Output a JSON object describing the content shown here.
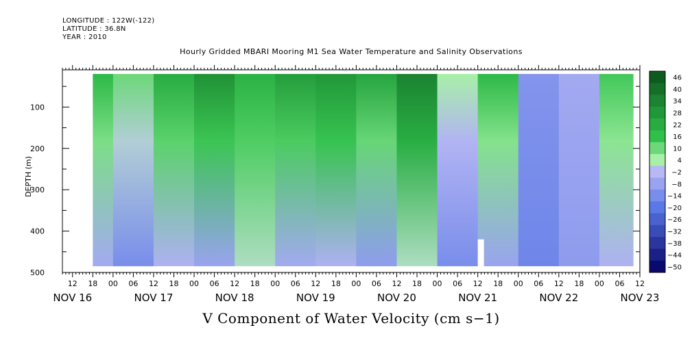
{
  "header": {
    "longitude": "LONGITUDE : 122W(-122)",
    "latitude": "LATITUDE : 36.8N",
    "year": "YEAR : 2010"
  },
  "title": "Hourly Gridded MBARI Mooring M1 Sea Water Temperature and Salinity Observations",
  "bottom_title": "V Component of Water Velocity (cm s−1)",
  "chart_data": {
    "type": "heatmap",
    "title": "Hourly Gridded MBARI Mooring M1 Sea Water Temperature and Salinity Observations",
    "xlabel": "",
    "ylabel": "DEPTH (m)",
    "colorbar_label": "V Component of Water Velocity (cm s−1)",
    "y_inverted": true,
    "ylim": [
      500,
      10
    ],
    "y_ticks": [
      100,
      200,
      300,
      400,
      500
    ],
    "x_range_hours": [
      "NOV 16 09:00",
      "NOV 23 12:00"
    ],
    "data_extent": {
      "start": "NOV 16 18:00",
      "end": "NOV 23 10:00",
      "depth_min": 20,
      "depth_max": 485
    },
    "x_hour_ticks": [
      "12",
      "18",
      "00",
      "06",
      "12",
      "18",
      "00",
      "06",
      "12",
      "18",
      "00",
      "06",
      "12",
      "18",
      "00",
      "06",
      "12",
      "18",
      "00",
      "06",
      "12",
      "18",
      "00",
      "06",
      "12",
      "18",
      "00",
      "06",
      "12",
      "18",
      "00",
      "06"
    ],
    "x_day_labels": [
      "NOV 16",
      "NOV 17",
      "NOV 18",
      "NOV 19",
      "NOV 20",
      "NOV 21",
      "NOV 22",
      "NOV 23"
    ],
    "colorbar_levels": [
      "46",
      "40",
      "34",
      "28",
      "22",
      "16",
      "10",
      "4",
      "−2",
      "−8",
      "−14",
      "−20",
      "−26",
      "−32",
      "−38",
      "−44",
      "−50"
    ],
    "colorbar_range": [
      -50,
      50
    ],
    "colors": {
      "strong_positive": "#0a4d1a",
      "positive": "#2fc04a",
      "weak_positive": "#a8f0a8",
      "weak_negative": "#b8b8f4",
      "negative": "#5a78e6",
      "strong_negative": "#0a0a6e"
    },
    "bands": [
      {
        "start": "NOV 16 18:00",
        "surface_value": 18,
        "deep_value": -6
      },
      {
        "start": "NOV 17 00:00",
        "surface_value": 10,
        "deep_value": -14
      },
      {
        "start": "NOV 17 12:00",
        "surface_value": 22,
        "deep_value": -4
      },
      {
        "start": "NOV 18 00:00",
        "surface_value": 30,
        "deep_value": -8
      },
      {
        "start": "NOV 18 12:00",
        "surface_value": 20,
        "deep_value": 2
      },
      {
        "start": "NOV 19 00:00",
        "surface_value": 26,
        "deep_value": -6
      },
      {
        "start": "NOV 19 12:00",
        "surface_value": 28,
        "deep_value": -4
      },
      {
        "start": "NOV 20 00:00",
        "surface_value": 24,
        "deep_value": -10
      },
      {
        "start": "NOV 20 12:00",
        "surface_value": 34,
        "deep_value": 2
      },
      {
        "start": "NOV 21 00:00",
        "surface_value": 4,
        "deep_value": -14
      },
      {
        "start": "NOV 21 12:00",
        "surface_value": 18,
        "deep_value": -8
      },
      {
        "start": "NOV 22 00:00",
        "surface_value": -12,
        "deep_value": -16
      },
      {
        "start": "NOV 22 12:00",
        "surface_value": -6,
        "deep_value": -10
      },
      {
        "start": "NOV 23 00:00",
        "surface_value": 14,
        "deep_value": -4
      }
    ],
    "missing_data": [
      {
        "time": "NOV 21 12:00",
        "depth_min": 420,
        "depth_max": 485
      }
    ],
    "grid": false,
    "legend": "colorbar right"
  }
}
